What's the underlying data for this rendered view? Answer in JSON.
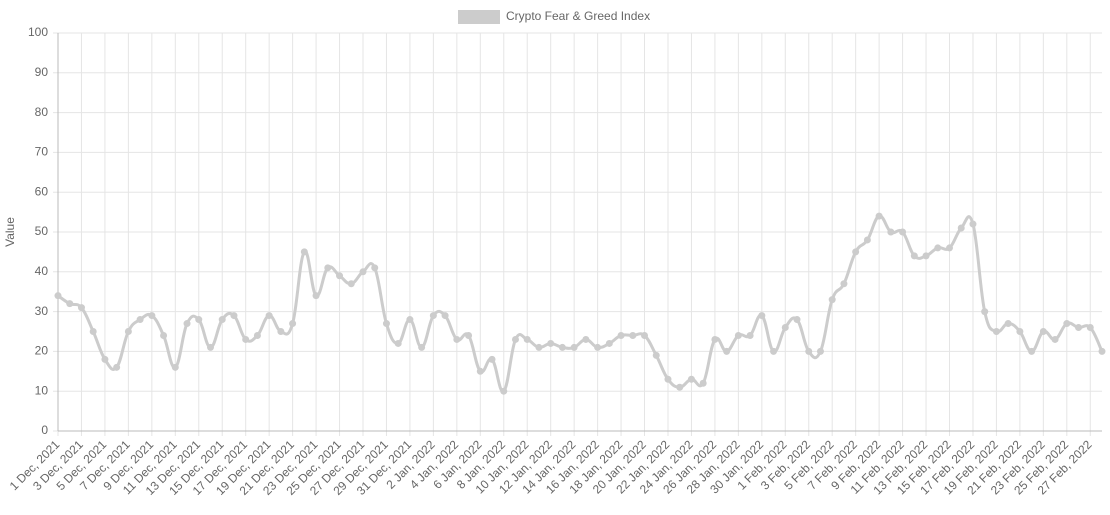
{
  "chart_data": {
    "type": "line",
    "y_label": "Value",
    "legend": "top",
    "grid": true,
    "categories": [
      "1 Dec, 2021",
      null,
      "3 Dec, 2021",
      null,
      "5 Dec, 2021",
      null,
      "7 Dec, 2021",
      null,
      "9 Dec, 2021",
      null,
      "11 Dec, 2021",
      null,
      "13 Dec, 2021",
      null,
      "15 Dec, 2021",
      null,
      "17 Dec, 2021",
      null,
      "19 Dec, 2021",
      null,
      "21 Dec, 2021",
      null,
      "23 Dec, 2021",
      null,
      "25 Dec, 2021",
      null,
      "27 Dec, 2021",
      null,
      "29 Dec, 2021",
      null,
      "31 Dec, 2021",
      null,
      "2 Jan, 2022",
      null,
      "4 Jan, 2022",
      null,
      "6 Jan, 2022",
      null,
      "8 Jan, 2022",
      null,
      "10 Jan, 2022",
      null,
      "12 Jan, 2022",
      null,
      "14 Jan, 2022",
      null,
      "16 Jan, 2022",
      null,
      "18 Jan, 2022",
      null,
      "20 Jan, 2022",
      null,
      "22 Jan, 2022",
      null,
      "24 Jan, 2022",
      null,
      "26 Jan, 2022",
      null,
      "28 Jan, 2022",
      null,
      "30 Jan, 2022",
      null,
      "1 Feb, 2022",
      null,
      "3 Feb, 2022",
      null,
      "5 Feb, 2022",
      null,
      "7 Feb, 2022",
      null,
      "9 Feb, 2022",
      null,
      "11 Feb, 2022",
      null,
      "13 Feb, 2022",
      null,
      "15 Feb, 2022",
      null,
      "17 Feb, 2022",
      null,
      "19 Feb, 2022",
      null,
      "21 Feb, 2022",
      null,
      "23 Feb, 2022",
      null,
      "25 Feb, 2022",
      null,
      "27 Feb, 2022",
      null
    ],
    "series": [
      {
        "name": "Crypto Fear & Greed Index",
        "color": "#cccccc",
        "values": [
          34,
          32,
          31,
          25,
          18,
          16,
          25,
          28,
          29,
          24,
          16,
          27,
          28,
          21,
          28,
          29,
          23,
          24,
          29,
          25,
          27,
          45,
          34,
          41,
          39,
          37,
          40,
          41,
          27,
          22,
          28,
          21,
          29,
          29,
          23,
          24,
          15,
          18,
          10,
          23,
          23,
          21,
          22,
          21,
          21,
          23,
          21,
          22,
          24,
          24,
          24,
          19,
          13,
          11,
          13,
          12,
          23,
          20,
          24,
          24,
          29,
          20,
          26,
          28,
          20,
          20,
          33,
          37,
          45,
          48,
          54,
          50,
          50,
          44,
          44,
          46,
          46,
          51,
          52,
          30,
          25,
          27,
          25,
          20,
          25,
          23,
          27,
          26,
          26,
          20
        ]
      }
    ],
    "ylim": [
      0,
      100
    ],
    "yticks": [
      0,
      10,
      20,
      30,
      40,
      50,
      60,
      70,
      80,
      90,
      100
    ]
  }
}
